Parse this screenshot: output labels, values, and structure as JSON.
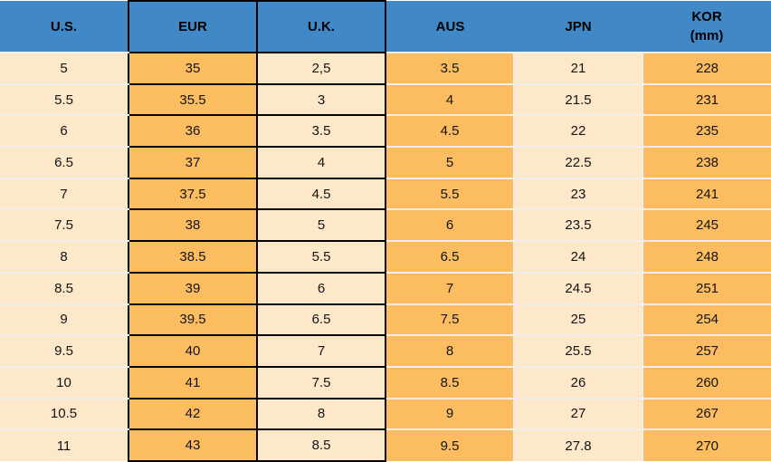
{
  "table": {
    "columns": [
      {
        "key": "us",
        "label": "U.S."
      },
      {
        "key": "eur",
        "label": "EUR"
      },
      {
        "key": "uk",
        "label": "U.K."
      },
      {
        "key": "aus",
        "label": "AUS"
      },
      {
        "key": "jpn",
        "label": "JPN"
      },
      {
        "key": "kor",
        "label": "KOR",
        "sublabel": "(mm)"
      }
    ],
    "rows": [
      [
        "5",
        "35",
        "2,5",
        "3.5",
        "21",
        "228"
      ],
      [
        "5.5",
        "35.5",
        "3",
        "4",
        "21.5",
        "231"
      ],
      [
        "6",
        "36",
        "3.5",
        "4.5",
        "22",
        "235"
      ],
      [
        "6.5",
        "37",
        "4",
        "5",
        "22.5",
        "238"
      ],
      [
        "7",
        "37.5",
        "4.5",
        "5.5",
        "23",
        "241"
      ],
      [
        "7.5",
        "38",
        "5",
        "6",
        "23.5",
        "245"
      ],
      [
        "8",
        "38.5",
        "5.5",
        "6.5",
        "24",
        "248"
      ],
      [
        "8.5",
        "39",
        "6",
        "7",
        "24.5",
        "251"
      ],
      [
        "9",
        "39.5",
        "6.5",
        "7.5",
        "25",
        "254"
      ],
      [
        "9.5",
        "40",
        "7",
        "8",
        "25.5",
        "257"
      ],
      [
        "10",
        "41",
        "7.5",
        "8.5",
        "26",
        "260"
      ],
      [
        "10.5",
        "42",
        "8",
        "9",
        "27",
        "267"
      ],
      [
        "11",
        "43",
        "8.5",
        "9.5",
        "27.8",
        "270"
      ]
    ]
  },
  "colors": {
    "header_bg": "#4189C6",
    "orange_cell": "#FBBD60",
    "cream_cell": "#FDE8C9",
    "black_border": "#000000",
    "row_separator": "#F1EEEB",
    "text": "#141414"
  },
  "chart_data": {
    "type": "table",
    "columns": [
      "U.S.",
      "EUR",
      "U.K.",
      "AUS",
      "JPN",
      "KOR (mm)"
    ],
    "rows": [
      [
        "5",
        "35",
        "2,5",
        "3.5",
        "21",
        "228"
      ],
      [
        "5.5",
        "35.5",
        "3",
        "4",
        "21.5",
        "231"
      ],
      [
        "6",
        "36",
        "3.5",
        "4.5",
        "22",
        "235"
      ],
      [
        "6.5",
        "37",
        "4",
        "5",
        "22.5",
        "238"
      ],
      [
        "7",
        "37.5",
        "4.5",
        "5.5",
        "23",
        "241"
      ],
      [
        "7.5",
        "38",
        "5",
        "6",
        "23.5",
        "245"
      ],
      [
        "8",
        "38.5",
        "5.5",
        "6.5",
        "24",
        "248"
      ],
      [
        "8.5",
        "39",
        "6",
        "7",
        "24.5",
        "251"
      ],
      [
        "9",
        "39.5",
        "6.5",
        "7.5",
        "25",
        "254"
      ],
      [
        "9.5",
        "40",
        "7",
        "8",
        "25.5",
        "257"
      ],
      [
        "10",
        "41",
        "7.5",
        "8.5",
        "26",
        "260"
      ],
      [
        "10.5",
        "42",
        "8",
        "9",
        "27",
        "267"
      ],
      [
        "11",
        "43",
        "8.5",
        "9.5",
        "27.8",
        "270"
      ]
    ],
    "layout": {
      "header_style": "blue band, bold black text",
      "column_fills": [
        "cream",
        "orange",
        "cream",
        "orange",
        "cream",
        "orange"
      ],
      "bordered_columns": [
        "EUR",
        "U.K."
      ]
    }
  }
}
